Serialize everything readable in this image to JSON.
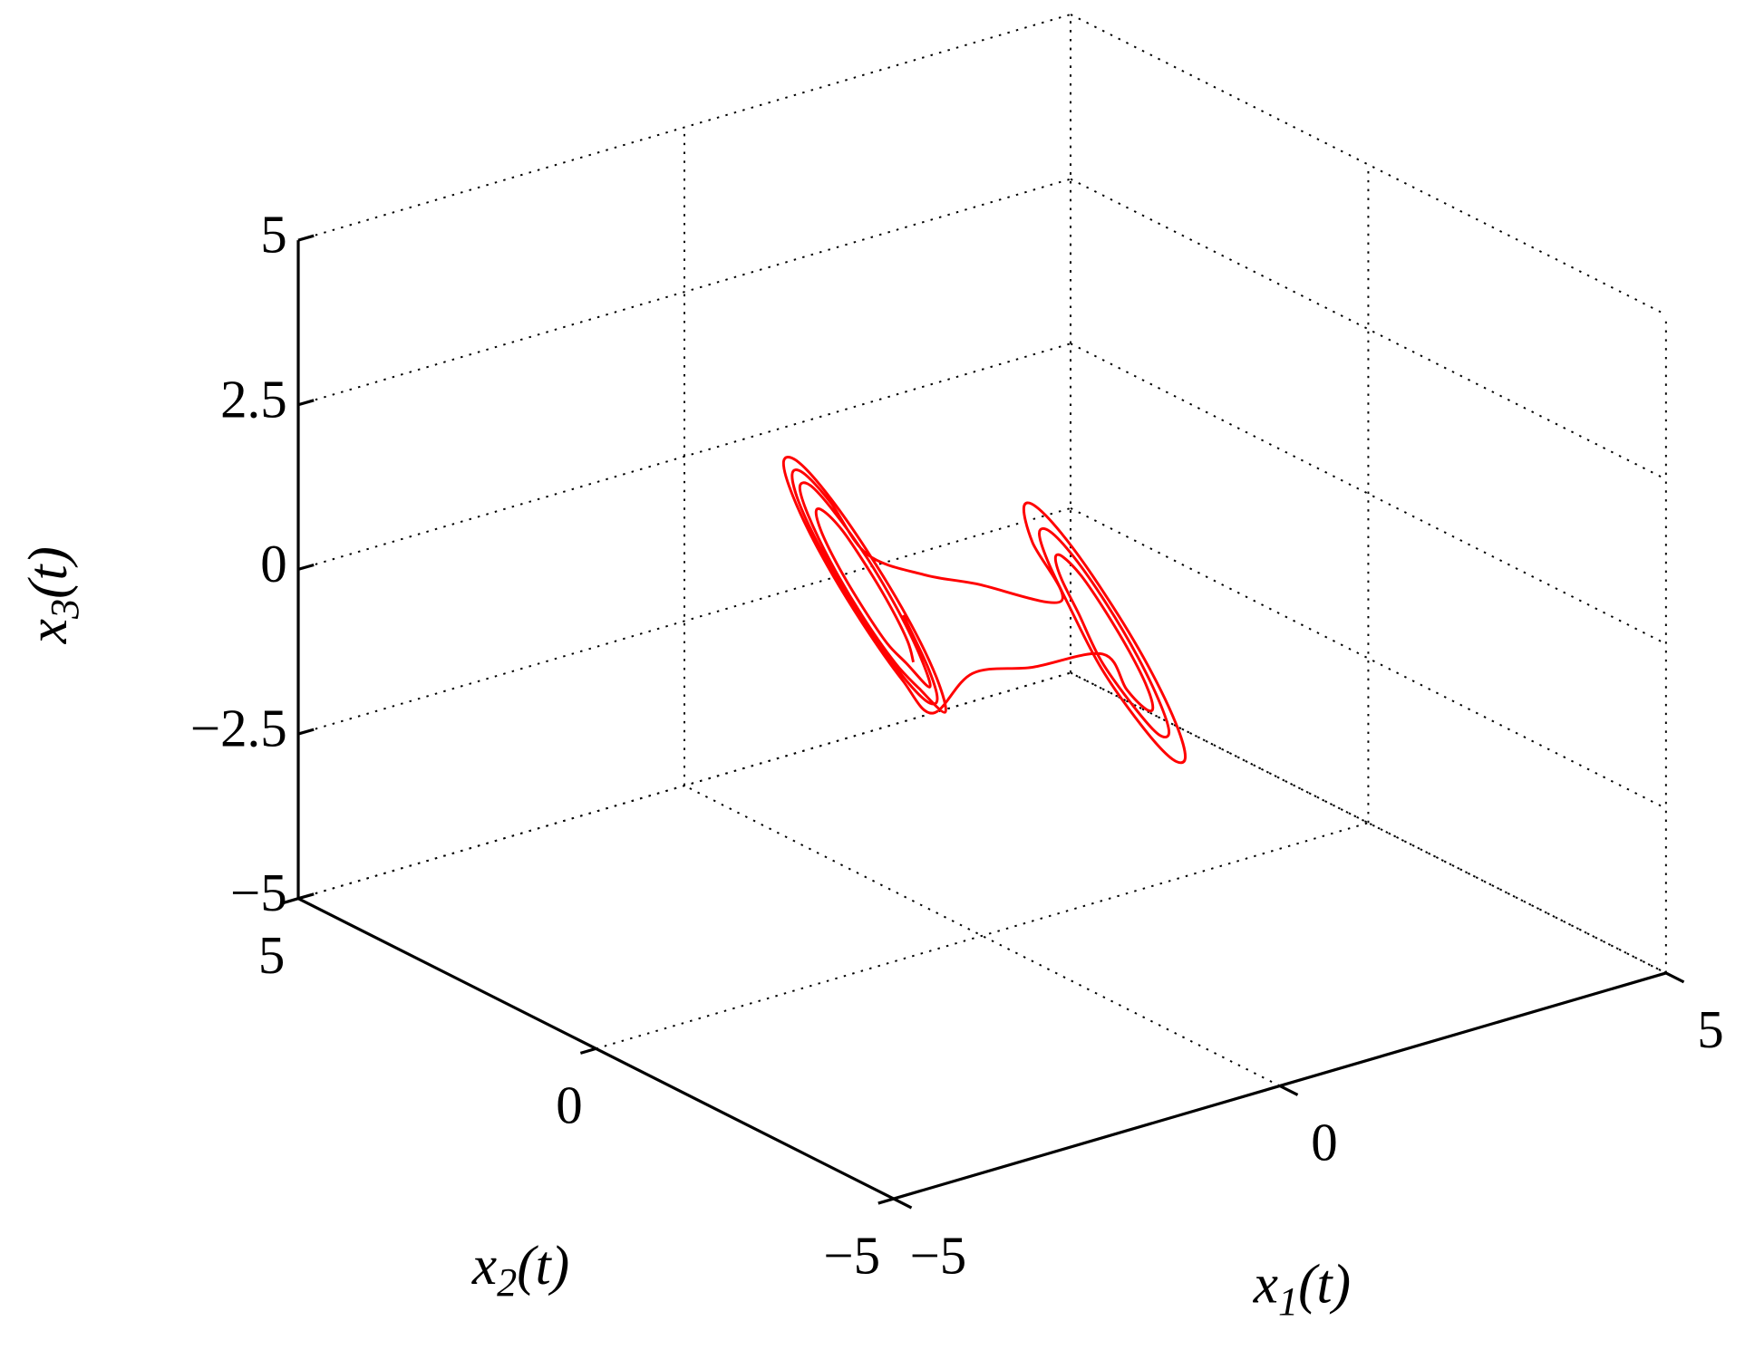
{
  "chart_data": {
    "type": "line3d",
    "xlabel": [
      "x",
      "1",
      "(t)"
    ],
    "ylabel": [
      "x",
      "2",
      "(t)"
    ],
    "zlabel": [
      "x",
      "3",
      "(t)"
    ],
    "xlim": [
      -5,
      5
    ],
    "ylim": [
      -5,
      5
    ],
    "zlim": [
      -5,
      5
    ],
    "xticks": [
      {
        "value": -5,
        "label": "−5"
      },
      0,
      5
    ],
    "yticks": [
      {
        "value": -5,
        "label": "−5"
      },
      0,
      5
    ],
    "zticks": [
      {
        "value": -5,
        "label": "−5"
      },
      {
        "value": -2.5,
        "label": "−2.5"
      },
      0,
      2.5,
      5
    ],
    "grid": true,
    "series": [
      {
        "color": "#ff0000",
        "x": [
          -0.89,
          -0.85,
          -0.99,
          -1.27,
          -1.61,
          -1.94,
          -2.15,
          -2.19,
          -2.05,
          -1.77,
          -1.43,
          -1.1,
          -0.68,
          -0.63,
          -0.81,
          -1.18,
          -1.65,
          -2.07,
          -2.36,
          -2.41,
          -2.23,
          -1.86,
          -1.4,
          -0.97,
          -0.48,
          -0.4,
          -0.63,
          -1.1,
          -1.68,
          -2.21,
          -2.57,
          -2.64,
          -2.41,
          -1.94,
          -1.36,
          -0.83,
          -0.2,
          0.5,
          1.33,
          1.67,
          2.0,
          2.21,
          2.25,
          2.11,
          1.83,
          1.49,
          1.16,
          0.95,
          0.91,
          1.05,
          1.24,
          1.71,
          2.13,
          2.42,
          2.47,
          2.29,
          1.92,
          1.46,
          1.03,
          0.74,
          0.69,
          0.87,
          1.16,
          1.74,
          2.27,
          2.63,
          2.7,
          2.47,
          2.0,
          1.42,
          0.89,
          0.54,
          0.46,
          0.69,
          0.0,
          -0.6,
          -1.14,
          -1.66,
          -2.14,
          -2.46,
          -2.53,
          -2.32,
          -1.9,
          -1.38,
          -0.9,
          -0.58,
          -0.52,
          -0.72
        ],
        "y": [
          0,
          0.15,
          0.26,
          0.3,
          0.26,
          0.15,
          0,
          -0.15,
          -0.26,
          -0.3,
          -0.26,
          -0.15,
          0,
          0.2,
          0.35,
          0.4,
          0.35,
          0.2,
          0,
          -0.2,
          -0.35,
          -0.4,
          -0.35,
          -0.2,
          0,
          0.25,
          0.43,
          0.5,
          0.43,
          0.25,
          0,
          -0.25,
          -0.43,
          -0.5,
          -0.43,
          -0.25,
          -0.1,
          -0.2,
          -0.3,
          -0.26,
          -0.15,
          0,
          0.15,
          0.26,
          0.3,
          0.26,
          0.15,
          0,
          -0.15,
          -0.26,
          -0.4,
          -0.35,
          -0.2,
          0,
          0.2,
          0.35,
          0.4,
          0.35,
          0.2,
          0,
          -0.2,
          -0.35,
          -0.5,
          -0.43,
          -0.25,
          0,
          0.25,
          0.43,
          0.5,
          0.43,
          0.25,
          0,
          -0.25,
          -0.43,
          0.1,
          0.2,
          0.45,
          0.39,
          0.23,
          0,
          -0.23,
          -0.39,
          -0.45,
          -0.39,
          -0.23,
          0,
          0.23,
          0.39
        ],
        "z": [
          -0.54,
          -0.3,
          0.23,
          0.92,
          1.59,
          2.05,
          2.18,
          1.94,
          1.41,
          0.72,
          0.05,
          -0.41,
          -0.99,
          -0.68,
          0.04,
          0.96,
          1.85,
          2.46,
          2.63,
          2.32,
          1.6,
          0.68,
          -0.21,
          -0.82,
          -1.44,
          -1.05,
          -0.16,
          0.99,
          2.1,
          2.86,
          3.08,
          2.69,
          1.8,
          0.65,
          -0.46,
          -1.22,
          -0.9,
          -1.0,
          -1.04,
          -1.71,
          -2.17,
          -2.3,
          -2.06,
          -1.53,
          -0.84,
          -0.17,
          0.29,
          0.42,
          0.18,
          -0.35,
          -1.08,
          -1.97,
          -2.58,
          -2.75,
          -2.44,
          -1.72,
          -0.8,
          0.09,
          0.7,
          0.87,
          0.56,
          -0.16,
          -1.11,
          -2.22,
          -2.98,
          -3.2,
          -2.81,
          -1.92,
          -0.77,
          0.34,
          1.1,
          1.32,
          0.93,
          0.04,
          0.3,
          0.6,
          0.98,
          1.97,
          2.66,
          2.85,
          2.5,
          1.7,
          0.66,
          -0.33,
          -1.02,
          -1.21,
          -0.86,
          -0.06
        ]
      }
    ]
  }
}
